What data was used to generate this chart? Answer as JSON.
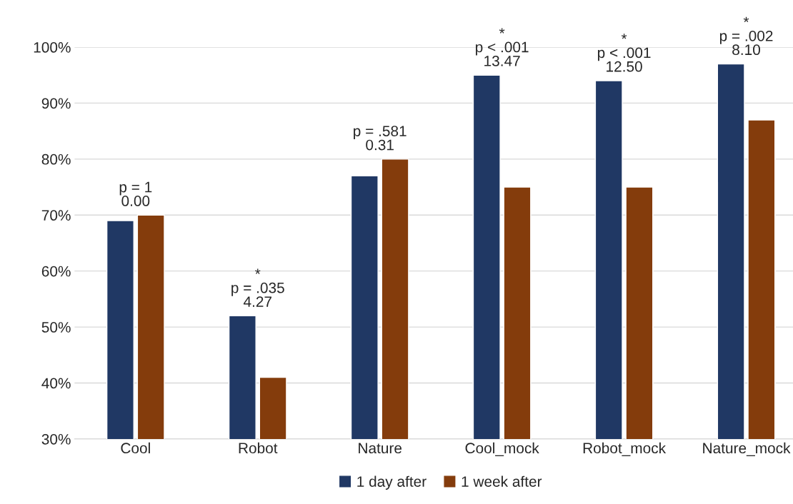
{
  "chart_data": {
    "type": "bar",
    "categories": [
      "Cool",
      "Robot",
      "Nature",
      "Cool_mock",
      "Robot_mock",
      "Nature_mock"
    ],
    "series": [
      {
        "name": "1 day after",
        "color": "#203864",
        "values": [
          69,
          52,
          77,
          95,
          94,
          97
        ]
      },
      {
        "name": "1 week after",
        "color": "#843c0c",
        "values": [
          70,
          41,
          80,
          75,
          75,
          87
        ]
      }
    ],
    "ylim": [
      30,
      100
    ],
    "yticks": [
      {
        "value": 30,
        "label": "30%"
      },
      {
        "value": 40,
        "label": "40%"
      },
      {
        "value": 50,
        "label": "50%"
      },
      {
        "value": 60,
        "label": "60%"
      },
      {
        "value": 70,
        "label": "70%"
      },
      {
        "value": 80,
        "label": "80%"
      },
      {
        "value": 90,
        "label": "90%"
      },
      {
        "value": 100,
        "label": "100%"
      }
    ],
    "grid": "y",
    "legend": "bottom",
    "annotations": [
      {
        "text": "p = 1\n0.00",
        "x": "Cool",
        "y": 70
      },
      {
        "text": "*\np = .035\n4.27",
        "x": "Robot",
        "y": 52
      },
      {
        "text": "p = .581\n0.31",
        "x": "Nature",
        "y": 80
      },
      {
        "text": "*\np < .001\n13.47",
        "x": "Cool_mock",
        "y": 95
      },
      {
        "text": "*\np < .001\n12.50",
        "x": "Robot_mock",
        "y": 94
      },
      {
        "text": "*\np = .002\n8.10",
        "x": "Nature_mock",
        "y": 97
      }
    ]
  }
}
